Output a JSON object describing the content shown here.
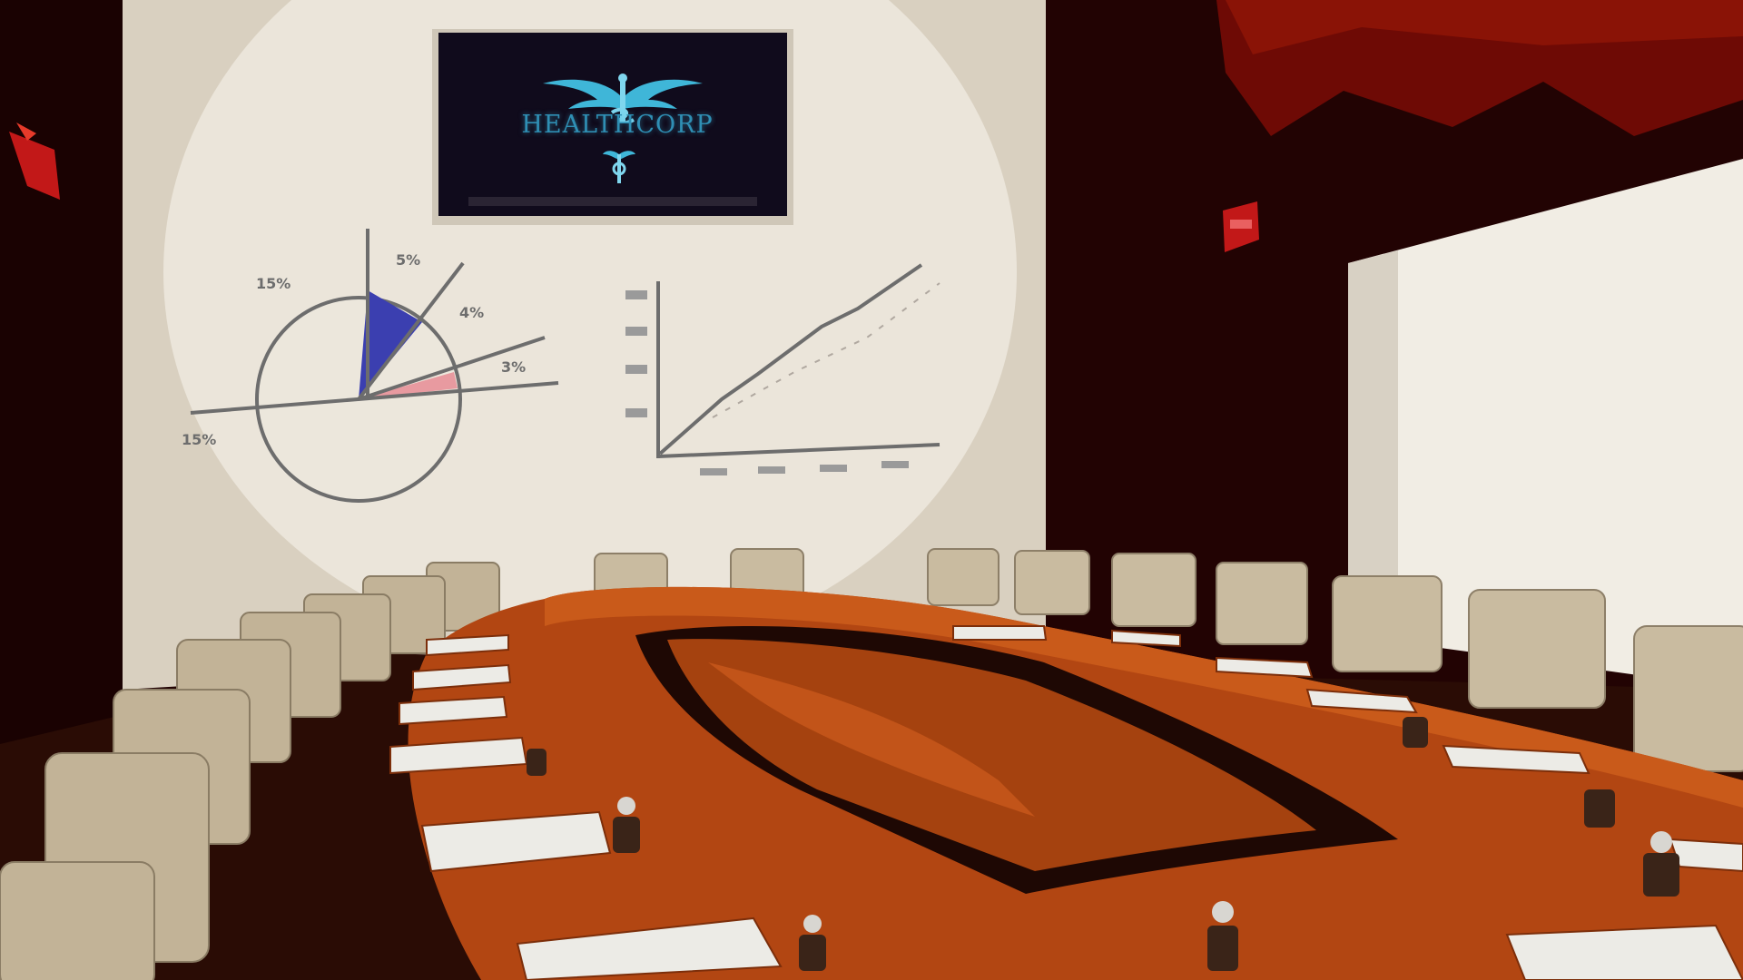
{
  "scene": {
    "location": "boardroom",
    "tv_screen": {
      "brand": "HEALTHCORP",
      "logo_icon": "caduceus-wings-icon",
      "sub_icon": "caduceus-small-icon"
    },
    "whiteboard": {
      "pie_labels": [
        "15%",
        "5%",
        "4%",
        "3%",
        "15%"
      ],
      "pie_colors": {
        "blue_slice": "#3b3fb0",
        "pink_slice": "#e89aa0"
      }
    },
    "room": {
      "exit_sign_color": "#c21818",
      "table_color": "#b24612",
      "wall_color": "#e8e2d6",
      "panel_color": "#f3efe6"
    }
  }
}
